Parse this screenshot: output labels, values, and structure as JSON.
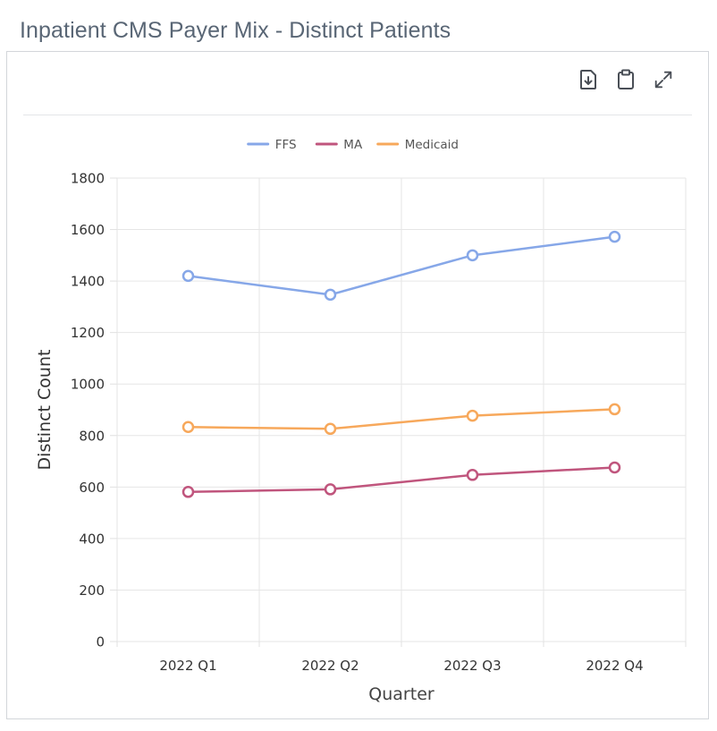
{
  "page": {
    "title": "Inpatient CMS Payer Mix - Distinct Patients"
  },
  "toolbar": {
    "icons": [
      "download-icon",
      "clipboard-icon",
      "expand-icon"
    ]
  },
  "chart_data": {
    "type": "line",
    "categories": [
      "2022 Q1",
      "2022 Q2",
      "2022 Q3",
      "2022 Q4"
    ],
    "series": [
      {
        "name": "FFS",
        "color": "#86a7e8",
        "values": [
          1420,
          1347,
          1500,
          1572
        ]
      },
      {
        "name": "MA",
        "color": "#c0557d",
        "values": [
          581,
          591,
          647,
          676
        ]
      },
      {
        "name": "Medicaid",
        "color": "#f7a85b",
        "values": [
          833,
          826,
          877,
          902
        ]
      }
    ],
    "xlabel": "Quarter",
    "ylabel": "Distinct Count",
    "ylim": [
      0,
      1800
    ],
    "yticks": [
      0,
      200,
      400,
      600,
      800,
      1000,
      1200,
      1400,
      1600,
      1800
    ],
    "grid": true,
    "legend": "top"
  }
}
